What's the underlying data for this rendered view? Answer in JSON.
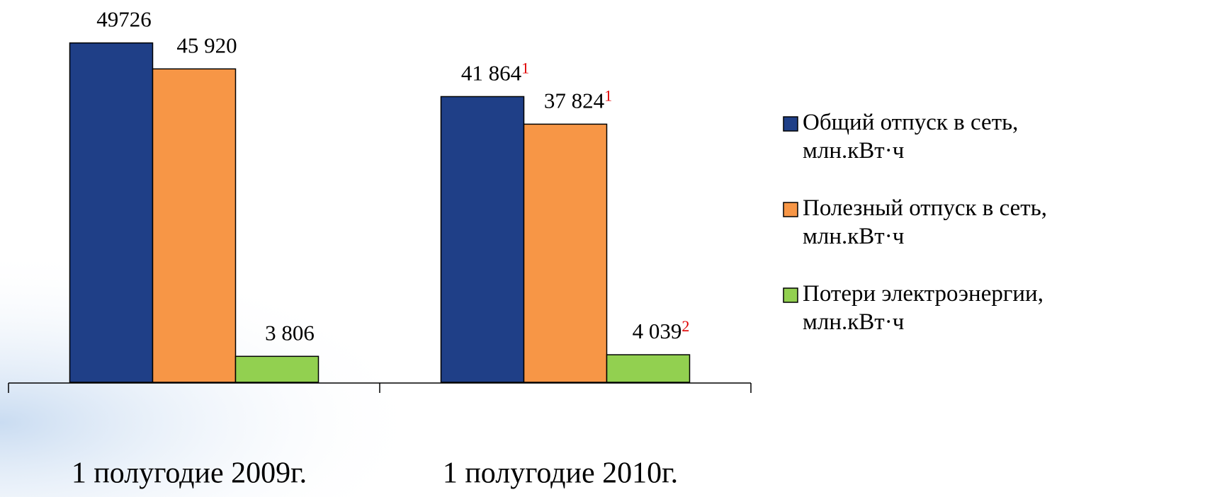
{
  "chart_data": {
    "type": "bar",
    "categories": [
      "1 полугодие 2009г.",
      "1 полугодие 2010г."
    ],
    "series": [
      {
        "name": "Общий отпуск в сеть, млн.кВт·ч",
        "color": "#1f3f87",
        "values": [
          49726,
          41864
        ],
        "value_labels": [
          "49726",
          "41 864"
        ],
        "value_label_notes": [
          null,
          "1"
        ]
      },
      {
        "name": "Полезный отпуск в сеть, млн.кВт·ч",
        "color": "#f79646",
        "values": [
          45920,
          37824
        ],
        "value_labels": [
          "45 920",
          "37 824"
        ],
        "value_label_notes": [
          null,
          "1"
        ]
      },
      {
        "name": "Потери электроэнергии, млн.кВт·ч",
        "color": "#92d050",
        "values": [
          3806,
          4039
        ],
        "value_labels": [
          "3 806",
          "4 039"
        ],
        "value_label_notes": [
          null,
          "2"
        ]
      }
    ],
    "ylim": [
      0,
      50000
    ],
    "legend": "right"
  }
}
